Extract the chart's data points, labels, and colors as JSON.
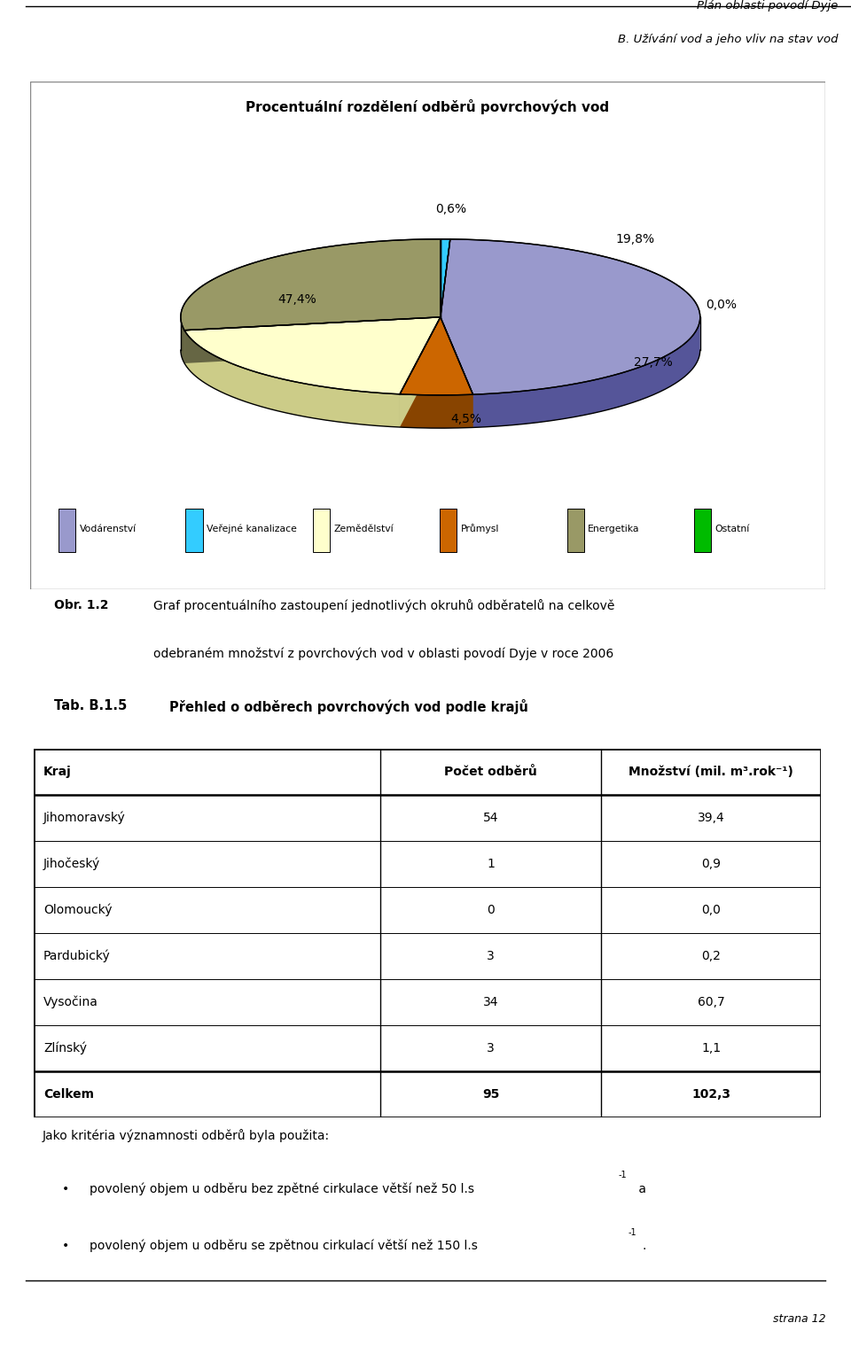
{
  "header_line1": "Plán oblasti povodí Dyje",
  "header_line2": "B. Užívání vod a jeho vliv na stav vod",
  "chart_title": "Procentuální rozdělení odběrů povrchových vod",
  "wedge_order": [
    {
      "label": "Ostatní",
      "value": 0.0,
      "color": "#00BB00",
      "dark": "#007700"
    },
    {
      "label": "Veřejné kanalizace",
      "value": 0.6,
      "color": "#33CCFF",
      "dark": "#1188BB"
    },
    {
      "label": "Vodárenství",
      "value": 47.4,
      "color": "#9999CC",
      "dark": "#555599"
    },
    {
      "label": "Průmysl",
      "value": 4.5,
      "color": "#CC6600",
      "dark": "#884400"
    },
    {
      "label": "Zemědělství",
      "value": 19.8,
      "color": "#FFFFCC",
      "dark": "#CCCC88"
    },
    {
      "label": "Energetika",
      "value": 27.7,
      "color": "#999966",
      "dark": "#666644"
    }
  ],
  "legend_order": [
    {
      "label": "Vodárenství",
      "color": "#9999CC"
    },
    {
      "label": "Veřejné kanalizace",
      "color": "#33CCFF"
    },
    {
      "label": "Zemědělství",
      "color": "#FFFFCC"
    },
    {
      "label": "Průmysl",
      "color": "#CC6600"
    },
    {
      "label": "Energetika",
      "color": "#999966"
    },
    {
      "label": "Ostatní",
      "color": "#00BB00"
    }
  ],
  "pct_labels": [
    {
      "text": "47,4%",
      "wx": -0.55,
      "wy": 0.12
    },
    {
      "text": "0,6%",
      "wx": 0.04,
      "wy": 0.72
    },
    {
      "text": "19,8%",
      "wx": 0.75,
      "wy": 0.52
    },
    {
      "text": "0,0%",
      "wx": 1.08,
      "wy": 0.08
    },
    {
      "text": "27,7%",
      "wx": 0.82,
      "wy": -0.3
    },
    {
      "text": "4,5%",
      "wx": 0.1,
      "wy": -0.68
    }
  ],
  "table_rows": [
    [
      "Jihomoravský",
      "54",
      "39,4"
    ],
    [
      "Jihočeský",
      "1",
      "0,9"
    ],
    [
      "Olomoucký",
      "0",
      "0,0"
    ],
    [
      "Pardubický",
      "3",
      "0,2"
    ],
    [
      "Vysočina",
      "34",
      "60,7"
    ],
    [
      "Zlínský",
      "3",
      "1,1"
    ],
    [
      "Celkem",
      "95",
      "102,3"
    ]
  ],
  "bg_color": "#FFFFFF"
}
